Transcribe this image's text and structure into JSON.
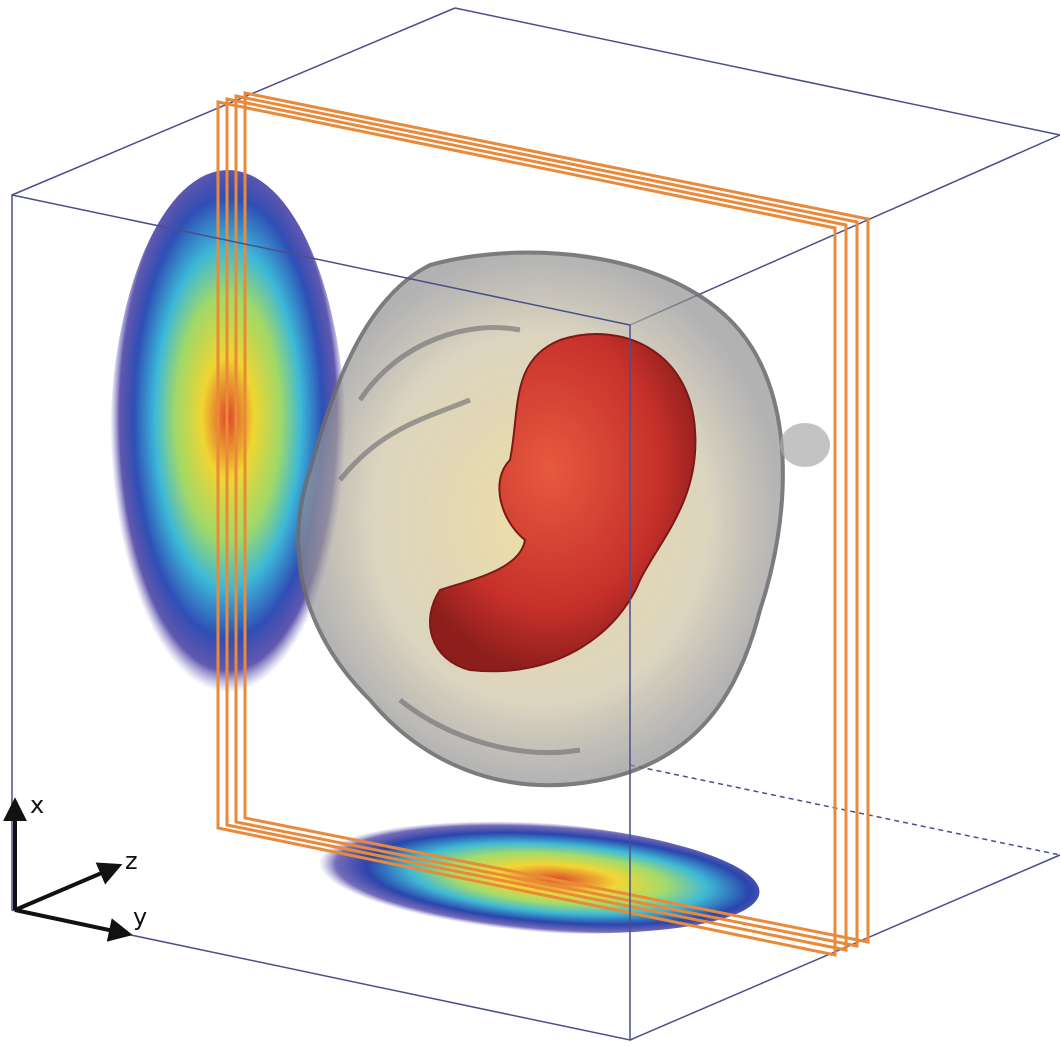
{
  "axes": {
    "x": "x",
    "z": "z",
    "y": "y"
  }
}
